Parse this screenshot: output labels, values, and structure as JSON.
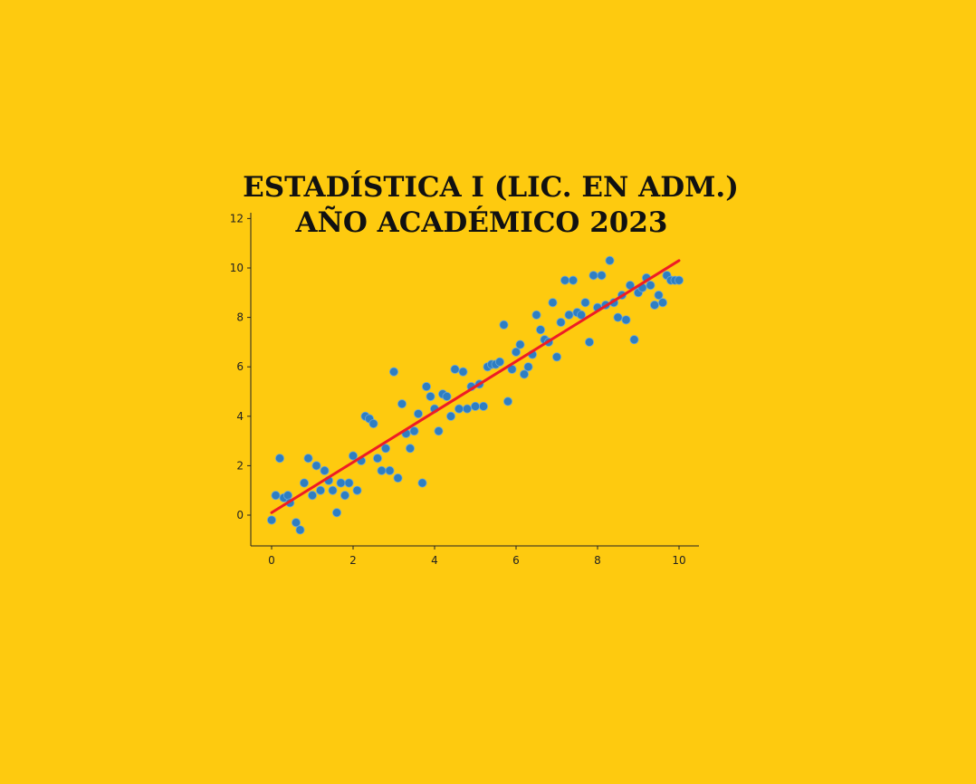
{
  "colors": {
    "background": "#FECA0F",
    "point": "#2E7EC2",
    "point_edge": "#6AA7D8",
    "fit_line": "#EE1C25",
    "axis": "#222222",
    "title": "#111111"
  },
  "chart_data": {
    "type": "scatter",
    "title_line1": "ESTADÍSTICA I (LIC. EN ADM.)",
    "title_line2": "AÑO ACADÉMICO 2023",
    "xlabel": "",
    "ylabel": "",
    "xlim": [
      -0.5,
      10.5
    ],
    "ylim": [
      -1.2,
      12.2
    ],
    "x_ticks": [
      0,
      2,
      4,
      6,
      8,
      10
    ],
    "y_ticks": [
      0,
      2,
      4,
      6,
      8,
      10,
      12
    ],
    "grid": false,
    "legend": "none",
    "fit_line": {
      "x": [
        0,
        10
      ],
      "y": [
        0.1,
        10.3
      ]
    },
    "points": {
      "x": [
        0.0,
        0.1,
        0.2,
        0.3,
        0.4,
        0.45,
        0.6,
        0.7,
        0.8,
        0.9,
        1.0,
        1.1,
        1.2,
        1.3,
        1.4,
        1.5,
        1.6,
        1.7,
        1.8,
        1.9,
        2.0,
        2.1,
        2.2,
        2.3,
        2.4,
        2.5,
        2.6,
        2.7,
        2.8,
        2.9,
        3.0,
        3.1,
        3.2,
        3.3,
        3.4,
        3.5,
        3.6,
        3.7,
        3.8,
        3.9,
        4.0,
        4.1,
        4.2,
        4.3,
        4.4,
        4.5,
        4.6,
        4.7,
        4.8,
        4.9,
        5.0,
        5.1,
        5.2,
        5.3,
        5.4,
        5.5,
        5.6,
        5.7,
        5.8,
        5.9,
        6.0,
        6.1,
        6.2,
        6.3,
        6.4,
        6.5,
        6.6,
        6.7,
        6.8,
        6.9,
        7.0,
        7.1,
        7.2,
        7.3,
        7.4,
        7.5,
        7.6,
        7.7,
        7.8,
        7.9,
        8.0,
        8.1,
        8.2,
        8.3,
        8.4,
        8.5,
        8.6,
        8.7,
        8.8,
        8.9,
        9.0,
        9.1,
        9.2,
        9.3,
        9.4,
        9.5,
        9.6,
        9.7,
        9.8,
        9.9,
        10.0
      ],
      "y": [
        -0.2,
        0.8,
        2.3,
        0.7,
        0.8,
        0.5,
        -0.3,
        -0.6,
        1.3,
        2.3,
        0.8,
        2.0,
        1.0,
        1.8,
        1.4,
        1.0,
        0.1,
        1.3,
        0.8,
        1.3,
        2.4,
        1.0,
        2.2,
        4.0,
        3.9,
        3.7,
        2.3,
        1.8,
        2.7,
        1.8,
        5.8,
        1.5,
        4.5,
        3.3,
        2.7,
        3.4,
        4.1,
        1.3,
        5.2,
        4.8,
        4.3,
        3.4,
        4.9,
        4.8,
        4.0,
        5.9,
        4.3,
        5.8,
        4.3,
        5.2,
        4.4,
        5.3,
        4.4,
        6.0,
        6.1,
        6.1,
        6.2,
        7.7,
        4.6,
        5.9,
        6.6,
        6.9,
        5.7,
        6.0,
        6.5,
        8.1,
        7.5,
        7.1,
        7.0,
        8.6,
        6.4,
        7.8,
        9.5,
        8.1,
        9.5,
        8.2,
        8.1,
        8.6,
        7.0,
        9.7,
        8.4,
        9.7,
        8.5,
        10.3,
        8.6,
        8.0,
        8.9,
        7.9,
        9.3,
        7.1,
        9.0,
        9.2,
        9.6,
        9.3,
        8.5,
        8.9,
        8.6,
        9.7,
        9.5,
        9.5,
        9.5
      ]
    }
  }
}
